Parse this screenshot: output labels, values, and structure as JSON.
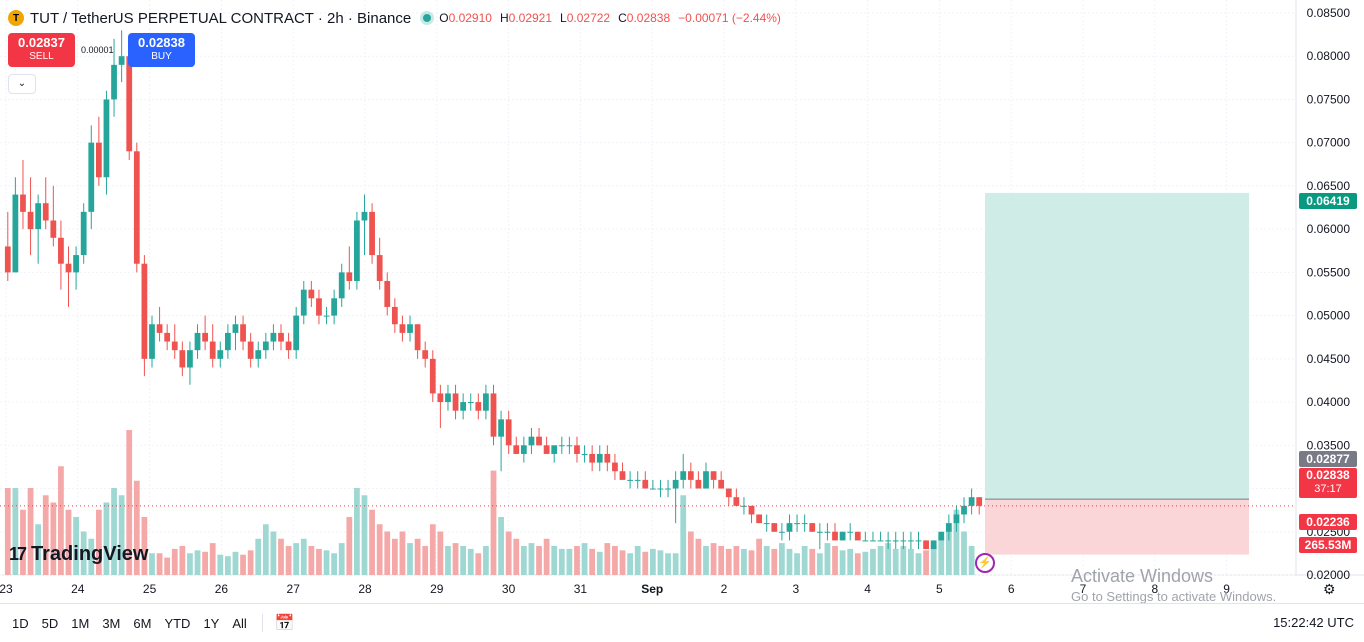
{
  "header": {
    "logo_letter": "T",
    "symbol_title": "TUT / TetherUS PERPETUAL CONTRACT · 2h · Binance",
    "ohlc": {
      "o_label": "O",
      "o_value": "0.02910",
      "h_label": "H",
      "h_value": "0.02921",
      "l_label": "L",
      "l_value": "0.02722",
      "c_label": "C",
      "c_value": "0.02838",
      "change": "−0.00071 (−2.44%)"
    }
  },
  "trade": {
    "sell_price": "0.02837",
    "sell_label": "SELL",
    "spread": "0.00001",
    "buy_price": "0.02838",
    "buy_label": "BUY",
    "collapse_icon": "chevron-down-icon"
  },
  "branding": {
    "logo_mark": "17",
    "logo_text": "TradingView"
  },
  "watermark": {
    "line1": "Activate Windows",
    "line2": "Go to Settings to activate Windows."
  },
  "toolbar": {
    "timeframes": [
      "1D",
      "5D",
      "1M",
      "3M",
      "6M",
      "YTD",
      "1Y",
      "All"
    ],
    "clock": "15:22:42 UTC"
  },
  "price_labels": {
    "target": "0.06419",
    "current_high": "0.02877",
    "last": "0.02838",
    "countdown": "37:17",
    "stop": "0.02236",
    "volume": "265.53M"
  },
  "colors": {
    "up": "#26a69a",
    "down": "#ef5350",
    "vol_up": "#9fd8d2",
    "vol_down": "#f4a9a8",
    "profit_zone": "#cfece7",
    "loss_zone": "#fad6d9"
  },
  "chart_data": {
    "type": "candlestick",
    "y_axis": {
      "ticks": [
        "0.08500",
        "0.08000",
        "0.07500",
        "0.07000",
        "0.06500",
        "0.06000",
        "0.05500",
        "0.05000",
        "0.04500",
        "0.04000",
        "0.03500",
        "0.03000",
        "0.02500",
        "0.02000"
      ],
      "ylim": [
        0.02,
        0.0865
      ]
    },
    "x_axis": {
      "ticks": [
        "23",
        "24",
        "25",
        "26",
        "27",
        "28",
        "29",
        "30",
        "31",
        "Sep",
        "2",
        "3",
        "4",
        "5",
        "6",
        "7",
        "8",
        "9"
      ]
    },
    "grid": true,
    "candles": [
      [
        0.058,
        0.062,
        0.054,
        0.055
      ],
      [
        0.055,
        0.066,
        0.055,
        0.064
      ],
      [
        0.064,
        0.068,
        0.06,
        0.062
      ],
      [
        0.062,
        0.066,
        0.057,
        0.06
      ],
      [
        0.06,
        0.064,
        0.056,
        0.063
      ],
      [
        0.063,
        0.066,
        0.06,
        0.061
      ],
      [
        0.061,
        0.065,
        0.058,
        0.059
      ],
      [
        0.059,
        0.061,
        0.053,
        0.056
      ],
      [
        0.056,
        0.058,
        0.051,
        0.055
      ],
      [
        0.055,
        0.058,
        0.053,
        0.057
      ],
      [
        0.057,
        0.063,
        0.056,
        0.062
      ],
      [
        0.062,
        0.072,
        0.06,
        0.07
      ],
      [
        0.07,
        0.073,
        0.065,
        0.066
      ],
      [
        0.066,
        0.076,
        0.064,
        0.075
      ],
      [
        0.075,
        0.082,
        0.073,
        0.079
      ],
      [
        0.079,
        0.083,
        0.077,
        0.08
      ],
      [
        0.08,
        0.081,
        0.068,
        0.069
      ],
      [
        0.069,
        0.07,
        0.055,
        0.056
      ],
      [
        0.056,
        0.057,
        0.043,
        0.045
      ],
      [
        0.045,
        0.05,
        0.044,
        0.049
      ],
      [
        0.049,
        0.051,
        0.047,
        0.048
      ],
      [
        0.048,
        0.049,
        0.046,
        0.047
      ],
      [
        0.047,
        0.049,
        0.045,
        0.046
      ],
      [
        0.046,
        0.047,
        0.043,
        0.044
      ],
      [
        0.044,
        0.047,
        0.042,
        0.046
      ],
      [
        0.046,
        0.049,
        0.045,
        0.048
      ],
      [
        0.048,
        0.05,
        0.046,
        0.047
      ],
      [
        0.047,
        0.049,
        0.044,
        0.045
      ],
      [
        0.045,
        0.047,
        0.044,
        0.046
      ],
      [
        0.046,
        0.049,
        0.045,
        0.048
      ],
      [
        0.048,
        0.05,
        0.046,
        0.049
      ],
      [
        0.049,
        0.05,
        0.046,
        0.047
      ],
      [
        0.047,
        0.048,
        0.044,
        0.045
      ],
      [
        0.045,
        0.047,
        0.044,
        0.046
      ],
      [
        0.046,
        0.048,
        0.045,
        0.047
      ],
      [
        0.047,
        0.049,
        0.046,
        0.048
      ],
      [
        0.048,
        0.049,
        0.046,
        0.047
      ],
      [
        0.047,
        0.048,
        0.045,
        0.046
      ],
      [
        0.046,
        0.051,
        0.045,
        0.05
      ],
      [
        0.05,
        0.054,
        0.049,
        0.053
      ],
      [
        0.053,
        0.054,
        0.051,
        0.052
      ],
      [
        0.052,
        0.053,
        0.049,
        0.05
      ],
      [
        0.05,
        0.051,
        0.049,
        0.05
      ],
      [
        0.05,
        0.053,
        0.049,
        0.052
      ],
      [
        0.052,
        0.056,
        0.051,
        0.055
      ],
      [
        0.055,
        0.058,
        0.053,
        0.054
      ],
      [
        0.054,
        0.062,
        0.053,
        0.061
      ],
      [
        0.061,
        0.064,
        0.057,
        0.062
      ],
      [
        0.062,
        0.063,
        0.056,
        0.057
      ],
      [
        0.057,
        0.059,
        0.053,
        0.054
      ],
      [
        0.054,
        0.055,
        0.05,
        0.051
      ],
      [
        0.051,
        0.052,
        0.048,
        0.049
      ],
      [
        0.049,
        0.05,
        0.047,
        0.048
      ],
      [
        0.048,
        0.05,
        0.047,
        0.049
      ],
      [
        0.049,
        0.049,
        0.045,
        0.046
      ],
      [
        0.046,
        0.047,
        0.044,
        0.045
      ],
      [
        0.045,
        0.046,
        0.04,
        0.041
      ],
      [
        0.041,
        0.042,
        0.037,
        0.04
      ],
      [
        0.04,
        0.042,
        0.039,
        0.041
      ],
      [
        0.041,
        0.042,
        0.038,
        0.039
      ],
      [
        0.039,
        0.041,
        0.038,
        0.04
      ],
      [
        0.04,
        0.041,
        0.039,
        0.04
      ],
      [
        0.04,
        0.041,
        0.038,
        0.039
      ],
      [
        0.039,
        0.042,
        0.038,
        0.041
      ],
      [
        0.041,
        0.042,
        0.035,
        0.036
      ],
      [
        0.036,
        0.039,
        0.032,
        0.038
      ],
      [
        0.038,
        0.039,
        0.034,
        0.035
      ],
      [
        0.035,
        0.036,
        0.034,
        0.034
      ],
      [
        0.034,
        0.036,
        0.033,
        0.035
      ],
      [
        0.035,
        0.037,
        0.034,
        0.036
      ],
      [
        0.036,
        0.037,
        0.035,
        0.035
      ],
      [
        0.035,
        0.036,
        0.034,
        0.034
      ],
      [
        0.034,
        0.035,
        0.033,
        0.035
      ],
      [
        0.035,
        0.036,
        0.034,
        0.035
      ],
      [
        0.035,
        0.036,
        0.034,
        0.035
      ],
      [
        0.035,
        0.036,
        0.033,
        0.034
      ],
      [
        0.034,
        0.035,
        0.033,
        0.034
      ],
      [
        0.034,
        0.035,
        0.032,
        0.033
      ],
      [
        0.033,
        0.035,
        0.032,
        0.034
      ],
      [
        0.034,
        0.035,
        0.032,
        0.033
      ],
      [
        0.033,
        0.034,
        0.031,
        0.032
      ],
      [
        0.032,
        0.033,
        0.031,
        0.031
      ],
      [
        0.031,
        0.032,
        0.03,
        0.031
      ],
      [
        0.031,
        0.032,
        0.03,
        0.031
      ],
      [
        0.031,
        0.032,
        0.03,
        0.03
      ],
      [
        0.03,
        0.031,
        0.03,
        0.03
      ],
      [
        0.03,
        0.031,
        0.029,
        0.03
      ],
      [
        0.03,
        0.031,
        0.029,
        0.03
      ],
      [
        0.03,
        0.032,
        0.026,
        0.031
      ],
      [
        0.031,
        0.034,
        0.03,
        0.032
      ],
      [
        0.032,
        0.033,
        0.03,
        0.031
      ],
      [
        0.031,
        0.032,
        0.03,
        0.03
      ],
      [
        0.03,
        0.033,
        0.03,
        0.032
      ],
      [
        0.032,
        0.032,
        0.03,
        0.031
      ],
      [
        0.031,
        0.032,
        0.03,
        0.03
      ],
      [
        0.03,
        0.03,
        0.028,
        0.029
      ],
      [
        0.029,
        0.03,
        0.028,
        0.028
      ],
      [
        0.028,
        0.029,
        0.027,
        0.028
      ],
      [
        0.028,
        0.028,
        0.026,
        0.027
      ],
      [
        0.027,
        0.027,
        0.026,
        0.026
      ],
      [
        0.026,
        0.027,
        0.025,
        0.026
      ],
      [
        0.026,
        0.026,
        0.025,
        0.025
      ],
      [
        0.025,
        0.026,
        0.024,
        0.025
      ],
      [
        0.025,
        0.027,
        0.024,
        0.026
      ],
      [
        0.026,
        0.027,
        0.025,
        0.026
      ],
      [
        0.026,
        0.027,
        0.025,
        0.026
      ],
      [
        0.026,
        0.026,
        0.025,
        0.025
      ],
      [
        0.025,
        0.026,
        0.023,
        0.025
      ],
      [
        0.025,
        0.026,
        0.024,
        0.025
      ],
      [
        0.025,
        0.026,
        0.024,
        0.024
      ],
      [
        0.024,
        0.025,
        0.024,
        0.025
      ],
      [
        0.025,
        0.026,
        0.024,
        0.025
      ],
      [
        0.025,
        0.025,
        0.024,
        0.024
      ],
      [
        0.024,
        0.025,
        0.024,
        0.024
      ],
      [
        0.024,
        0.025,
        0.024,
        0.024
      ],
      [
        0.024,
        0.025,
        0.024,
        0.024
      ],
      [
        0.024,
        0.025,
        0.023,
        0.024
      ],
      [
        0.024,
        0.025,
        0.023,
        0.024
      ],
      [
        0.024,
        0.025,
        0.023,
        0.024
      ],
      [
        0.024,
        0.025,
        0.023,
        0.024
      ],
      [
        0.024,
        0.025,
        0.023,
        0.024
      ],
      [
        0.024,
        0.024,
        0.023,
        0.023
      ],
      [
        0.023,
        0.024,
        0.023,
        0.024
      ],
      [
        0.024,
        0.025,
        0.024,
        0.025
      ],
      [
        0.025,
        0.027,
        0.024,
        0.026
      ],
      [
        0.026,
        0.028,
        0.025,
        0.027
      ],
      [
        0.027,
        0.029,
        0.026,
        0.028
      ],
      [
        0.028,
        0.03,
        0.027,
        0.029
      ],
      [
        0.029,
        0.029,
        0.027,
        0.028
      ]
    ],
    "volume": [
      0.6,
      0.6,
      0.45,
      0.6,
      0.35,
      0.55,
      0.5,
      0.75,
      0.45,
      0.4,
      0.3,
      0.25,
      0.45,
      0.5,
      0.6,
      0.55,
      1.0,
      0.65,
      0.4,
      0.15,
      0.15,
      0.12,
      0.18,
      0.2,
      0.15,
      0.17,
      0.16,
      0.22,
      0.14,
      0.13,
      0.16,
      0.14,
      0.17,
      0.25,
      0.35,
      0.3,
      0.25,
      0.2,
      0.22,
      0.25,
      0.2,
      0.18,
      0.17,
      0.15,
      0.22,
      0.4,
      0.6,
      0.55,
      0.45,
      0.35,
      0.3,
      0.25,
      0.3,
      0.22,
      0.25,
      0.2,
      0.35,
      0.3,
      0.2,
      0.22,
      0.2,
      0.18,
      0.15,
      0.2,
      0.72,
      0.4,
      0.3,
      0.25,
      0.2,
      0.22,
      0.2,
      0.25,
      0.2,
      0.18,
      0.18,
      0.2,
      0.22,
      0.18,
      0.16,
      0.22,
      0.2,
      0.17,
      0.15,
      0.2,
      0.16,
      0.18,
      0.17,
      0.15,
      0.15,
      0.55,
      0.3,
      0.25,
      0.2,
      0.22,
      0.2,
      0.18,
      0.2,
      0.18,
      0.17,
      0.25,
      0.2,
      0.18,
      0.22,
      0.18,
      0.15,
      0.2,
      0.18,
      0.15,
      0.22,
      0.2,
      0.17,
      0.18,
      0.15,
      0.16,
      0.18,
      0.2,
      0.22,
      0.18,
      0.2,
      0.18,
      0.15,
      0.17,
      0.2,
      0.25,
      0.3,
      0.45,
      0.3,
      0.2
    ],
    "annotations": [
      {
        "type": "long_position",
        "entry": 0.02877,
        "target": 0.06419,
        "stop": 0.02236,
        "x_start": "5",
        "x_end": "9"
      }
    ]
  }
}
